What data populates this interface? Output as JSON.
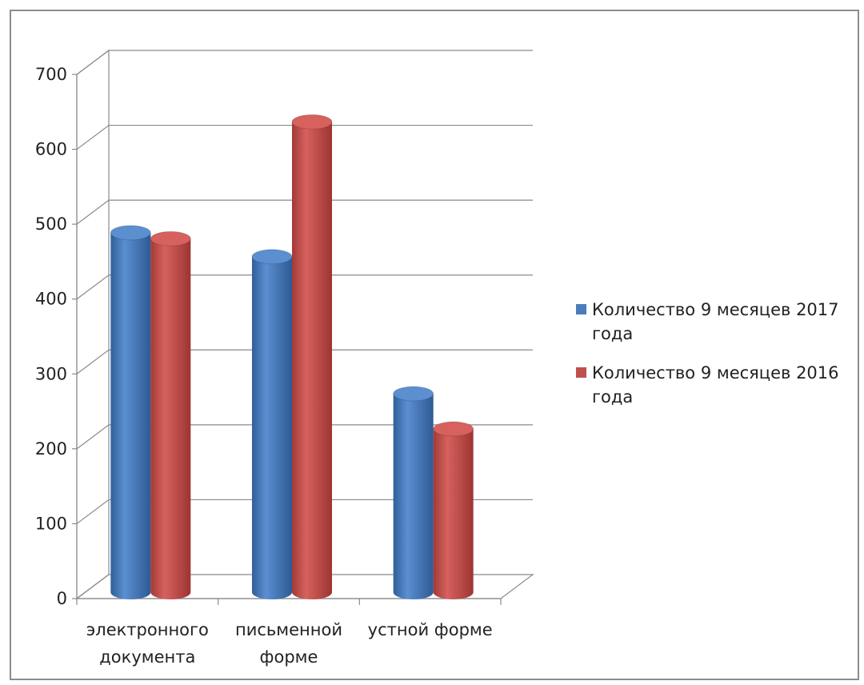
{
  "chart_data": {
    "type": "bar",
    "style": "3d-cylinder",
    "categories": [
      "электронного документа",
      "письменной форме",
      "устной форме"
    ],
    "category_lines": [
      [
        "электронного",
        "документа"
      ],
      [
        "письменной",
        "форме"
      ],
      [
        "устной форме"
      ]
    ],
    "series": [
      {
        "name": "Количество  9 месяцев 2017 года",
        "name_lines": [
          "Количество  9 месяцев 2017",
          "года"
        ],
        "values": [
          480,
          448,
          265
        ],
        "color": "#4a7ebb"
      },
      {
        "name": "Количество  9 месяцев  2016 года",
        "name_lines": [
          "Количество  9 месяцев  2016",
          "года"
        ],
        "values": [
          472,
          628,
          218
        ],
        "color": "#c0504d"
      }
    ],
    "ylim": [
      0,
      700
    ],
    "yticks": [
      0,
      100,
      200,
      300,
      400,
      500,
      600,
      700
    ],
    "grid": true,
    "legend_position": "right"
  }
}
